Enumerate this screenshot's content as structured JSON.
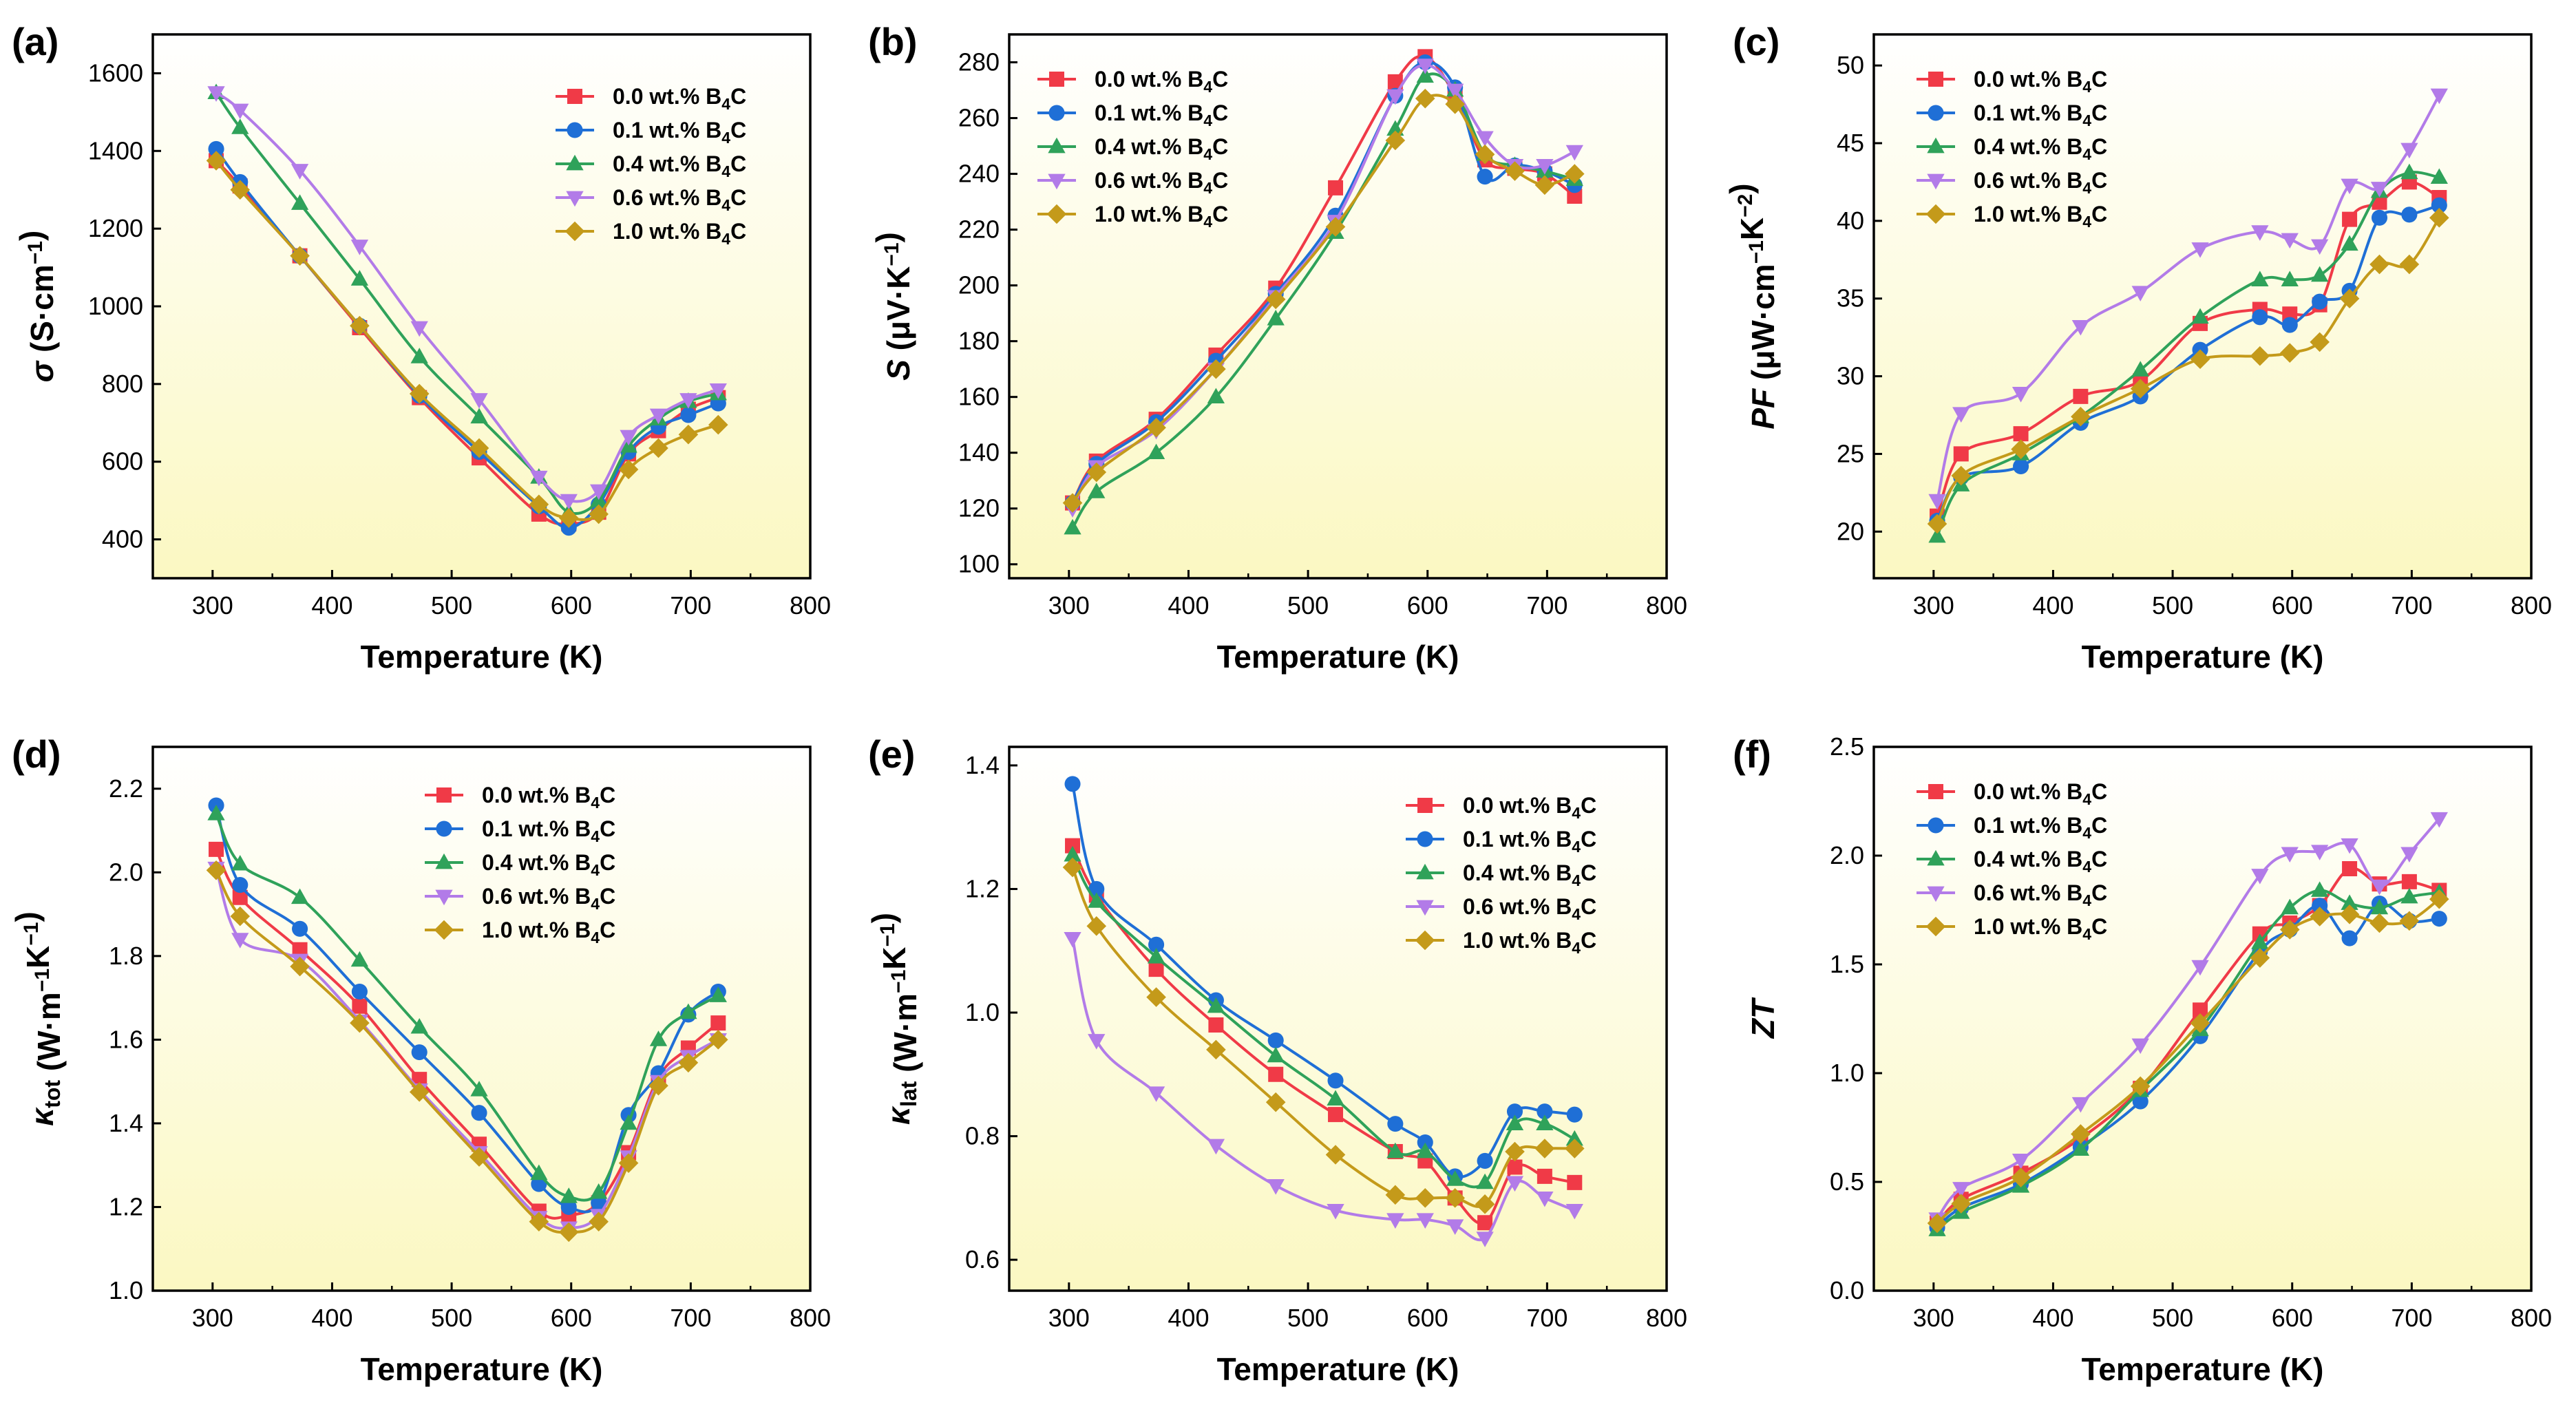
{
  "figure": {
    "series_names": [
      "0.0 wt.% B4C",
      "0.1 wt.% B4C",
      "0.4 wt.% B4C",
      "0.6 wt.% B4C",
      "1.0 wt.% B4C"
    ],
    "colors": {
      "0.0 wt.% B4C": "#f03a47",
      "0.1 wt.% B4C": "#1f6fd6",
      "0.4 wt.% B4C": "#2fa25a",
      "0.6 wt.% B4C": "#b27be8",
      "1.0 wt.% B4C": "#c49a1a"
    },
    "markers": {
      "0.0 wt.% B4C": "square",
      "0.1 wt.% B4C": "circle",
      "0.4 wt.% B4C": "triangle-up",
      "0.6 wt.% B4C": "triangle-down",
      "1.0 wt.% B4C": "diamond"
    },
    "background_gradient": [
      "#ffffff",
      "#fbf8c2"
    ]
  },
  "chart_data": [
    {
      "panel": "(a)",
      "type": "line",
      "xlabel": "Temperature (K)",
      "ylabel": "σ (S·cm⁻¹)",
      "xlim": [
        250,
        800
      ],
      "ylim": [
        300,
        1700
      ],
      "xticks": [
        300,
        400,
        500,
        600,
        700,
        800
      ],
      "yticks": [
        400,
        600,
        800,
        1000,
        1200,
        1400,
        1600
      ],
      "legend_position": "top-right",
      "x": [
        303,
        323,
        373,
        423,
        473,
        523,
        573,
        598,
        623,
        648,
        673,
        698,
        723
      ],
      "series": [
        {
          "name": "0.0 wt.% B4C",
          "values": [
            1375,
            1310,
            1130,
            945,
            765,
            610,
            465,
            440,
            470,
            620,
            680,
            735,
            765
          ]
        },
        {
          "name": "0.1 wt.% B4C",
          "values": [
            1405,
            1320,
            1130,
            950,
            770,
            625,
            485,
            430,
            490,
            625,
            690,
            720,
            750
          ]
        },
        {
          "name": "0.4 wt.% B4C",
          "values": [
            1550,
            1460,
            1265,
            1070,
            870,
            715,
            560,
            470,
            500,
            640,
            710,
            755,
            775
          ]
        },
        {
          "name": "0.6 wt.% B4C",
          "values": [
            1550,
            1505,
            1350,
            1155,
            945,
            760,
            560,
            500,
            525,
            665,
            720,
            760,
            785
          ]
        },
        {
          "name": "1.0 wt.% B4C",
          "values": [
            1375,
            1300,
            1130,
            950,
            775,
            635,
            490,
            455,
            465,
            580,
            635,
            670,
            695
          ]
        }
      ]
    },
    {
      "panel": "(b)",
      "type": "line",
      "xlabel": "Temperature (K)",
      "ylabel": "S (μV·K⁻¹)",
      "xlim": [
        250,
        800
      ],
      "ylim": [
        95,
        290
      ],
      "xticks": [
        300,
        400,
        500,
        600,
        700,
        800
      ],
      "yticks": [
        100,
        120,
        140,
        160,
        180,
        200,
        220,
        240,
        260,
        280
      ],
      "legend_position": "top-left",
      "x": [
        303,
        323,
        373,
        423,
        473,
        523,
        573,
        598,
        623,
        648,
        673,
        698,
        723
      ],
      "series": [
        {
          "name": "0.0 wt.% B4C",
          "values": [
            122,
            137,
            152,
            175,
            199,
            235,
            273,
            282,
            268,
            245,
            242,
            240,
            232
          ]
        },
        {
          "name": "0.1 wt.% B4C",
          "values": [
            122,
            136,
            151,
            173,
            197,
            225,
            268,
            280,
            271,
            239,
            243,
            241,
            236
          ]
        },
        {
          "name": "0.4 wt.% B4C",
          "values": [
            113,
            126,
            140,
            160,
            188,
            219,
            256,
            275,
            270,
            247,
            243,
            241,
            238
          ]
        },
        {
          "name": "0.6 wt.% B4C",
          "values": [
            120,
            135,
            148,
            170,
            196,
            223,
            268,
            279,
            270,
            253,
            243,
            243,
            248
          ]
        },
        {
          "name": "1.0 wt.% B4C",
          "values": [
            122,
            133,
            149,
            170,
            195,
            221,
            252,
            267,
            265,
            247,
            241,
            236,
            240
          ]
        }
      ]
    },
    {
      "panel": "(c)",
      "type": "line",
      "xlabel": "Temperature (K)",
      "ylabel": "PF (μW·cm⁻¹K⁻²)",
      "xlim": [
        250,
        800
      ],
      "ylim": [
        17,
        52
      ],
      "xticks": [
        300,
        400,
        500,
        600,
        700,
        800
      ],
      "yticks": [
        20,
        25,
        30,
        35,
        40,
        45,
        50
      ],
      "legend_position": "top-left",
      "x": [
        303,
        323,
        373,
        423,
        473,
        523,
        573,
        598,
        623,
        648,
        673,
        698,
        723
      ],
      "series": [
        {
          "name": "0.0 wt.% B4C",
          "values": [
            21.0,
            25.0,
            26.3,
            28.7,
            29.7,
            33.4,
            34.3,
            34.0,
            34.6,
            40.1,
            41.2,
            42.5,
            41.5
          ]
        },
        {
          "name": "0.1 wt.% B4C",
          "values": [
            20.7,
            23.5,
            24.2,
            27.0,
            28.7,
            31.7,
            33.8,
            33.3,
            34.8,
            35.5,
            40.2,
            40.4,
            41.0
          ]
        },
        {
          "name": "0.4 wt.% B4C",
          "values": [
            19.7,
            23.0,
            25.0,
            27.4,
            30.4,
            33.8,
            36.2,
            36.2,
            36.5,
            38.5,
            41.9,
            43.1,
            42.8
          ]
        },
        {
          "name": "0.6 wt.% B4C",
          "values": [
            22.0,
            27.6,
            28.9,
            33.2,
            35.4,
            38.2,
            39.3,
            38.8,
            38.4,
            42.3,
            42.1,
            44.6,
            48.1
          ]
        },
        {
          "name": "1.0 wt.% B4C",
          "values": [
            20.5,
            23.6,
            25.3,
            27.4,
            29.2,
            31.1,
            31.3,
            31.5,
            32.2,
            35.0,
            37.2,
            37.2,
            40.2
          ]
        }
      ]
    },
    {
      "panel": "(d)",
      "type": "line",
      "xlabel": "Temperature (K)",
      "ylabel": "κtot (W·m⁻¹K⁻¹)",
      "xlim": [
        250,
        800
      ],
      "ylim": [
        1.0,
        2.3
      ],
      "xticks": [
        300,
        400,
        500,
        600,
        700,
        800
      ],
      "yticks": [
        1.0,
        1.2,
        1.4,
        1.6,
        1.8,
        2.0,
        2.2
      ],
      "legend_position": "top-right",
      "x": [
        303,
        323,
        373,
        423,
        473,
        523,
        573,
        598,
        623,
        648,
        673,
        698,
        723
      ],
      "series": [
        {
          "name": "0.0 wt.% B4C",
          "values": [
            2.055,
            1.94,
            1.815,
            1.68,
            1.505,
            1.35,
            1.19,
            1.18,
            1.21,
            1.33,
            1.51,
            1.58,
            1.64
          ]
        },
        {
          "name": "0.1 wt.% B4C",
          "values": [
            2.16,
            1.97,
            1.865,
            1.715,
            1.57,
            1.425,
            1.255,
            1.2,
            1.21,
            1.42,
            1.52,
            1.66,
            1.715
          ]
        },
        {
          "name": "0.4 wt.% B4C",
          "values": [
            2.14,
            2.02,
            1.94,
            1.79,
            1.63,
            1.48,
            1.28,
            1.225,
            1.235,
            1.4,
            1.6,
            1.665,
            1.705
          ]
        },
        {
          "name": "0.6 wt.% B4C",
          "values": [
            2.01,
            1.84,
            1.79,
            1.645,
            1.48,
            1.33,
            1.175,
            1.15,
            1.18,
            1.32,
            1.5,
            1.56,
            1.6
          ]
        },
        {
          "name": "1.0 wt.% B4C",
          "values": [
            2.005,
            1.895,
            1.775,
            1.64,
            1.475,
            1.32,
            1.165,
            1.14,
            1.165,
            1.305,
            1.49,
            1.545,
            1.6
          ]
        }
      ]
    },
    {
      "panel": "(e)",
      "type": "line",
      "xlabel": "Temperature (K)",
      "ylabel": "κlat (W·m⁻¹K⁻¹)",
      "xlim": [
        250,
        800
      ],
      "ylim": [
        0.55,
        1.43
      ],
      "xticks": [
        300,
        400,
        500,
        600,
        700,
        800
      ],
      "yticks": [
        0.6,
        0.8,
        1.0,
        1.2,
        1.4
      ],
      "legend_position": "top-right",
      "x": [
        303,
        323,
        373,
        423,
        473,
        523,
        573,
        598,
        623,
        648,
        673,
        698,
        723
      ],
      "series": [
        {
          "name": "0.0 wt.% B4C",
          "values": [
            1.27,
            1.19,
            1.07,
            0.98,
            0.9,
            0.835,
            0.775,
            0.76,
            0.7,
            0.66,
            0.75,
            0.735,
            0.725
          ]
        },
        {
          "name": "0.1 wt.% B4C",
          "values": [
            1.37,
            1.2,
            1.11,
            1.02,
            0.955,
            0.89,
            0.82,
            0.79,
            0.735,
            0.76,
            0.84,
            0.84,
            0.835
          ]
        },
        {
          "name": "0.4 wt.% B4C",
          "values": [
            1.255,
            1.18,
            1.09,
            1.01,
            0.93,
            0.86,
            0.775,
            0.775,
            0.73,
            0.725,
            0.82,
            0.82,
            0.795
          ]
        },
        {
          "name": "0.6 wt.% B4C",
          "values": [
            1.12,
            0.955,
            0.87,
            0.785,
            0.72,
            0.68,
            0.665,
            0.665,
            0.655,
            0.635,
            0.725,
            0.7,
            0.68
          ]
        },
        {
          "name": "1.0 wt.% B4C",
          "values": [
            1.235,
            1.14,
            1.025,
            0.94,
            0.855,
            0.77,
            0.705,
            0.7,
            0.7,
            0.69,
            0.775,
            0.78,
            0.78
          ]
        }
      ]
    },
    {
      "panel": "(f)",
      "type": "line",
      "xlabel": "Temperature (K)",
      "ylabel": "ZT",
      "xlim": [
        250,
        800
      ],
      "ylim": [
        0.0,
        2.5
      ],
      "xticks": [
        300,
        400,
        500,
        600,
        700,
        800
      ],
      "yticks": [
        0.0,
        0.5,
        1.0,
        1.5,
        2.0,
        2.5
      ],
      "legend_position": "top-left",
      "x": [
        303,
        323,
        373,
        423,
        473,
        523,
        573,
        598,
        623,
        648,
        673,
        698,
        723
      ],
      "series": [
        {
          "name": "0.0 wt.% B4C",
          "values": [
            0.31,
            0.42,
            0.54,
            0.7,
            0.93,
            1.29,
            1.64,
            1.69,
            1.77,
            1.94,
            1.87,
            1.88,
            1.84
          ]
        },
        {
          "name": "0.1 wt.% B4C",
          "values": [
            0.29,
            0.38,
            0.49,
            0.66,
            0.87,
            1.17,
            1.56,
            1.66,
            1.77,
            1.62,
            1.78,
            1.7,
            1.71
          ]
        },
        {
          "name": "0.4 wt.% B4C",
          "values": [
            0.28,
            0.36,
            0.48,
            0.65,
            0.92,
            1.2,
            1.6,
            1.76,
            1.84,
            1.78,
            1.76,
            1.81,
            1.83
          ]
        },
        {
          "name": "0.6 wt.% B4C",
          "values": [
            0.33,
            0.47,
            0.6,
            0.86,
            1.13,
            1.49,
            1.91,
            2.01,
            2.02,
            2.05,
            1.86,
            2.01,
            2.17
          ]
        },
        {
          "name": "1.0 wt.% B4C",
          "values": [
            0.31,
            0.4,
            0.52,
            0.72,
            0.94,
            1.23,
            1.53,
            1.66,
            1.72,
            1.73,
            1.69,
            1.7,
            1.8
          ]
        }
      ]
    }
  ]
}
